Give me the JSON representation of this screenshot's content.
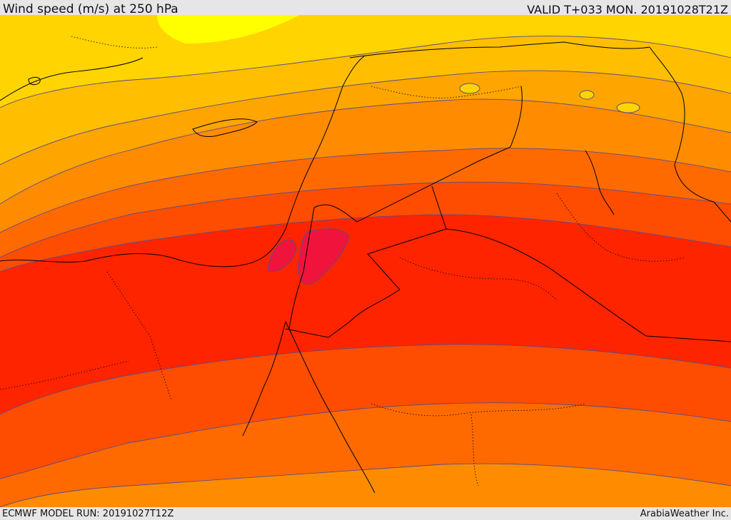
{
  "header": {
    "title": "Wind speed (m/s) at 250 hPa",
    "valid": "VALID T+033 MON. 20191028T21Z"
  },
  "footer": {
    "model_run": "ECMWF MODEL RUN: 20191027T12Z",
    "credit": "ArabiaWeather Inc."
  },
  "colors": {
    "band_lightest": "#ffff00",
    "band_1": "#ffd400",
    "band_2": "#ffbf00",
    "band_3": "#ffa500",
    "band_4": "#ff8c00",
    "band_5": "#ff6a00",
    "band_6": "#ff4d00",
    "band_7": "#ff2400",
    "band_core": "#f0143c",
    "contour": "#5a4a8a",
    "borders": "#000000"
  }
}
